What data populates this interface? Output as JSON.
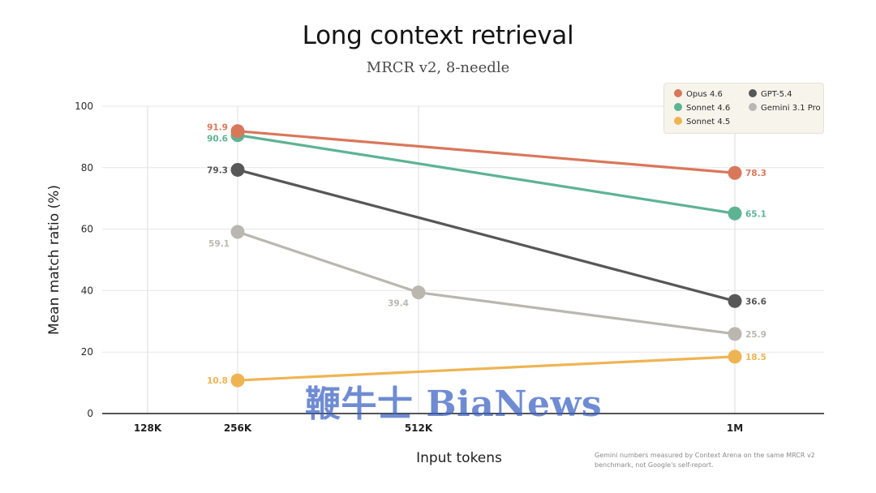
{
  "chart_data": {
    "type": "line",
    "title": "Long context retrieval",
    "subtitle": "MRCR v2, 8-needle",
    "xlabel": "Input tokens",
    "ylabel": "Mean match ratio (%)",
    "categories": [
      "128K",
      "256K",
      "512K",
      "1M"
    ],
    "ylim": [
      0,
      100
    ],
    "yticks": [
      0,
      20,
      40,
      60,
      80,
      100
    ],
    "grid": "vertical at each x category, horizontal at y ticks",
    "legend": "top-right",
    "series": [
      {
        "name": "Opus 4.6",
        "color": "#d9775b",
        "points": [
          {
            "x": "256K",
            "y": 91.9,
            "label": "91.9"
          },
          {
            "x": "1M",
            "y": 78.3,
            "label": "78.3"
          }
        ]
      },
      {
        "name": "Sonnet 4.6",
        "color": "#5db394",
        "points": [
          {
            "x": "256K",
            "y": 90.6,
            "label": "90.6"
          },
          {
            "x": "1M",
            "y": 65.1,
            "label": "65.1"
          }
        ]
      },
      {
        "name": "GPT-5.4",
        "color": "#575757",
        "points": [
          {
            "x": "256K",
            "y": 79.3,
            "label": "79.3"
          },
          {
            "x": "1M",
            "y": 36.6,
            "label": "36.6"
          }
        ]
      },
      {
        "name": "Gemini 3.1 Pro",
        "color": "#b9b7b0",
        "points": [
          {
            "x": "256K",
            "y": 59.1,
            "label": "59.1"
          },
          {
            "x": "512K",
            "y": 39.4,
            "label": "39.4"
          },
          {
            "x": "1M",
            "y": 25.9,
            "label": "25.9"
          }
        ]
      },
      {
        "name": "Sonnet 4.5",
        "color": "#efb452",
        "points": [
          {
            "x": "256K",
            "y": 10.8,
            "label": "10.8"
          },
          {
            "x": "1M",
            "y": 18.5,
            "label": "18.5"
          }
        ]
      }
    ],
    "annotation": "Gemini numbers measured by Context Arena on the same MRCR v2 benchmark, not Google's self-report."
  },
  "watermark": "鞭牛士 BiaNews"
}
